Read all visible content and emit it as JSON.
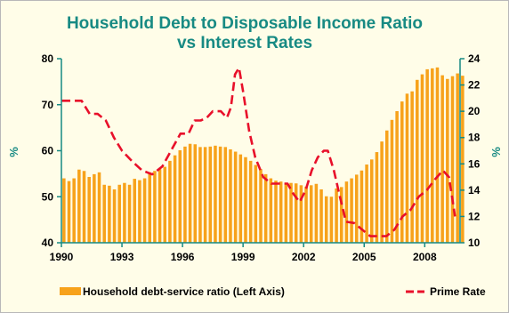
{
  "chart_data": {
    "type": "bar",
    "title": "Household Debt to Disposable Income Ratio",
    "subtitle": "vs Interest Rates",
    "ylabel": "%",
    "y2label": "%",
    "xlim": [
      1990,
      2009.75
    ],
    "ylim": [
      40,
      80
    ],
    "y2lim": [
      10,
      24
    ],
    "x_ticks": [
      "1990",
      "1993",
      "1996",
      "1999",
      "2002",
      "2005",
      "2008"
    ],
    "y_ticks": [
      "40",
      "50",
      "60",
      "70",
      "80"
    ],
    "y2_ticks": [
      "10",
      "12",
      "14",
      "16",
      "18",
      "20",
      "22",
      "24"
    ],
    "grid": false,
    "legend_position": "bottom",
    "colors": {
      "bars": "#f7a21b",
      "line": "#e8102a",
      "title": "#178a83",
      "axes": "#178a83"
    },
    "series": [
      {
        "name": "Household debt-service ratio (Left Axis)",
        "axis": "left",
        "type": "bar",
        "start_year": 1990,
        "step": 0.25,
        "values": [
          54.0,
          53.4,
          54.0,
          55.9,
          55.6,
          54.3,
          54.9,
          55.3,
          52.6,
          52.4,
          51.6,
          52.6,
          53.0,
          52.6,
          53.9,
          53.6,
          54.0,
          55.3,
          55.6,
          56.0,
          56.5,
          57.8,
          59.0,
          60.1,
          60.9,
          61.5,
          61.4,
          60.8,
          60.8,
          60.9,
          61.1,
          60.9,
          60.8,
          60.3,
          59.8,
          59.2,
          58.6,
          57.8,
          56.9,
          56.0,
          54.9,
          54.0,
          53.5,
          53.3,
          53.0,
          53.0,
          52.9,
          52.5,
          52.2,
          52.5,
          52.8,
          51.6,
          50.1,
          50.0,
          51.8,
          52.1,
          53.3,
          54.0,
          54.8,
          55.7,
          57.0,
          58.1,
          59.7,
          62.0,
          64.4,
          66.7,
          68.6,
          70.7,
          72.4,
          72.9,
          75.4,
          76.6,
          77.7,
          77.9,
          78.1,
          76.4,
          75.6,
          76.2,
          76.8,
          76.3
        ]
      },
      {
        "name": "Prime Rate",
        "axis": "right",
        "type": "line",
        "style": "dashed",
        "points": [
          [
            1990.0,
            20.8
          ],
          [
            1990.5,
            20.8
          ],
          [
            1991.0,
            20.8
          ],
          [
            1991.4,
            19.8
          ],
          [
            1991.8,
            19.8
          ],
          [
            1992.2,
            19.3
          ],
          [
            1992.6,
            18.0
          ],
          [
            1993.0,
            17.0
          ],
          [
            1993.5,
            16.2
          ],
          [
            1994.0,
            15.5
          ],
          [
            1994.5,
            15.2
          ],
          [
            1995.0,
            15.8
          ],
          [
            1995.5,
            17.2
          ],
          [
            1995.9,
            18.3
          ],
          [
            1996.3,
            18.3
          ],
          [
            1996.6,
            19.3
          ],
          [
            1996.9,
            19.3
          ],
          [
            1997.2,
            19.5
          ],
          [
            1997.5,
            20.0
          ],
          [
            1997.9,
            20.0
          ],
          [
            1998.2,
            19.5
          ],
          [
            1998.4,
            20.3
          ],
          [
            1998.6,
            22.8
          ],
          [
            1998.8,
            23.3
          ],
          [
            1999.0,
            21.5
          ],
          [
            1999.3,
            18.5
          ],
          [
            1999.6,
            16.5
          ],
          [
            2000.0,
            15.0
          ],
          [
            2000.4,
            14.5
          ],
          [
            2000.8,
            14.5
          ],
          [
            2001.2,
            14.5
          ],
          [
            2001.5,
            13.7
          ],
          [
            2001.8,
            13.1
          ],
          [
            2002.1,
            14.0
          ],
          [
            2002.4,
            15.5
          ],
          [
            2002.7,
            16.5
          ],
          [
            2003.0,
            17.0
          ],
          [
            2003.2,
            17.0
          ],
          [
            2003.5,
            15.5
          ],
          [
            2003.8,
            13.5
          ],
          [
            2004.1,
            11.6
          ],
          [
            2004.5,
            11.5
          ],
          [
            2004.9,
            11.0
          ],
          [
            2005.3,
            10.5
          ],
          [
            2005.7,
            10.5
          ],
          [
            2006.1,
            10.5
          ],
          [
            2006.5,
            11.0
          ],
          [
            2006.9,
            12.0
          ],
          [
            2007.3,
            12.5
          ],
          [
            2007.7,
            13.5
          ],
          [
            2008.1,
            14.0
          ],
          [
            2008.5,
            14.8
          ],
          [
            2008.9,
            15.5
          ],
          [
            2009.2,
            15.0
          ],
          [
            2009.4,
            13.0
          ],
          [
            2009.5,
            12.0
          ]
        ]
      }
    ]
  }
}
